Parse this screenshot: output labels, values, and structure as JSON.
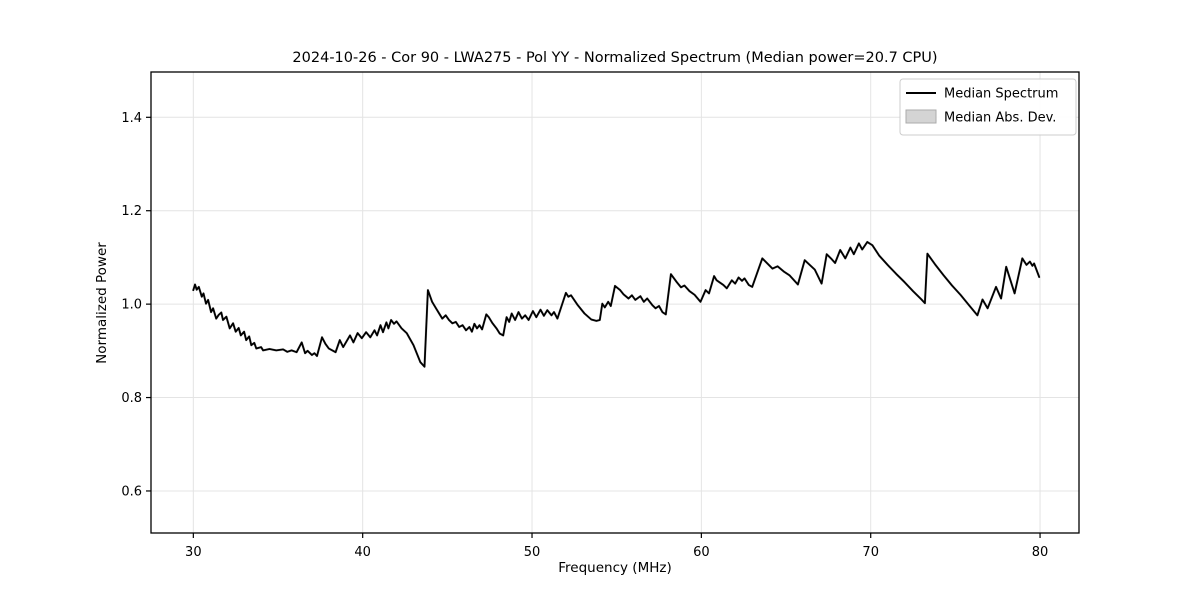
{
  "chart_data": {
    "type": "line",
    "title": "2024-10-26 - Cor 90 - LWA275 - Pol YY - Normalized Spectrum (Median power=20.7 CPU)",
    "xlabel": "Frequency (MHz)",
    "ylabel": "Normalized Power",
    "xlim": [
      27.5,
      82.3
    ],
    "ylim": [
      0.51,
      1.497
    ],
    "xticks": [
      {
        "v": 30,
        "label": "30"
      },
      {
        "v": 40,
        "label": "40"
      },
      {
        "v": 50,
        "label": "50"
      },
      {
        "v": 60,
        "label": "60"
      },
      {
        "v": 70,
        "label": "70"
      },
      {
        "v": 80,
        "label": "80"
      }
    ],
    "yticks": [
      {
        "v": 0.6,
        "label": "0.6"
      },
      {
        "v": 0.8,
        "label": "0.8"
      },
      {
        "v": 1.0,
        "label": "1.0"
      },
      {
        "v": 1.2,
        "label": "1.2"
      },
      {
        "v": 1.4,
        "label": "1.4"
      }
    ],
    "grid": true,
    "grid_color": "#e4e4e4",
    "legend": {
      "position": "upper right",
      "entries": [
        {
          "label": "Median Spectrum",
          "type": "line",
          "color": "#000000"
        },
        {
          "label": "Median Abs. Dev.",
          "type": "patch",
          "color": "#d4d4d4",
          "edge_color": "#ababab"
        }
      ]
    },
    "series": [
      {
        "name": "Median Spectrum",
        "color": "#000000",
        "mad_band_color": "#c9c9c9",
        "mad_band_halfwidth": 0.002,
        "points": [
          [
            30.0,
            1.03
          ],
          [
            30.1,
            1.042
          ],
          [
            30.2,
            1.031
          ],
          [
            30.32,
            1.037
          ],
          [
            30.5,
            1.016
          ],
          [
            30.6,
            1.023
          ],
          [
            30.75,
            1.001
          ],
          [
            30.87,
            1.009
          ],
          [
            31.05,
            0.983
          ],
          [
            31.17,
            0.991
          ],
          [
            31.35,
            0.969
          ],
          [
            31.5,
            0.977
          ],
          [
            31.65,
            0.982
          ],
          [
            31.75,
            0.966
          ],
          [
            31.95,
            0.973
          ],
          [
            32.15,
            0.948
          ],
          [
            32.35,
            0.959
          ],
          [
            32.5,
            0.941
          ],
          [
            32.68,
            0.949
          ],
          [
            32.8,
            0.933
          ],
          [
            33.0,
            0.941
          ],
          [
            33.12,
            0.923
          ],
          [
            33.3,
            0.931
          ],
          [
            33.42,
            0.912
          ],
          [
            33.6,
            0.917
          ],
          [
            33.72,
            0.905
          ],
          [
            34.0,
            0.908
          ],
          [
            34.12,
            0.901
          ],
          [
            34.5,
            0.904
          ],
          [
            34.9,
            0.901
          ],
          [
            35.3,
            0.903
          ],
          [
            35.55,
            0.898
          ],
          [
            35.8,
            0.901
          ],
          [
            36.1,
            0.897
          ],
          [
            36.4,
            0.918
          ],
          [
            36.6,
            0.895
          ],
          [
            36.75,
            0.9
          ],
          [
            37.0,
            0.891
          ],
          [
            37.15,
            0.895
          ],
          [
            37.3,
            0.889
          ],
          [
            37.6,
            0.929
          ],
          [
            37.8,
            0.915
          ],
          [
            38.0,
            0.905
          ],
          [
            38.4,
            0.897
          ],
          [
            38.65,
            0.923
          ],
          [
            38.85,
            0.908
          ],
          [
            39.25,
            0.933
          ],
          [
            39.45,
            0.918
          ],
          [
            39.7,
            0.938
          ],
          [
            39.95,
            0.927
          ],
          [
            40.2,
            0.94
          ],
          [
            40.45,
            0.929
          ],
          [
            40.7,
            0.944
          ],
          [
            40.85,
            0.933
          ],
          [
            41.05,
            0.955
          ],
          [
            41.2,
            0.94
          ],
          [
            41.4,
            0.961
          ],
          [
            41.52,
            0.948
          ],
          [
            41.68,
            0.966
          ],
          [
            41.85,
            0.958
          ],
          [
            42.0,
            0.963
          ],
          [
            42.3,
            0.948
          ],
          [
            42.6,
            0.938
          ],
          [
            43.0,
            0.912
          ],
          [
            43.4,
            0.876
          ],
          [
            43.65,
            0.866
          ],
          [
            43.85,
            1.03
          ],
          [
            44.1,
            1.005
          ],
          [
            44.35,
            0.99
          ],
          [
            44.55,
            0.978
          ],
          [
            44.7,
            0.969
          ],
          [
            44.9,
            0.976
          ],
          [
            45.1,
            0.966
          ],
          [
            45.3,
            0.959
          ],
          [
            45.5,
            0.962
          ],
          [
            45.7,
            0.951
          ],
          [
            45.9,
            0.955
          ],
          [
            46.1,
            0.944
          ],
          [
            46.3,
            0.951
          ],
          [
            46.45,
            0.941
          ],
          [
            46.6,
            0.958
          ],
          [
            46.75,
            0.948
          ],
          [
            46.9,
            0.955
          ],
          [
            47.05,
            0.946
          ],
          [
            47.3,
            0.978
          ],
          [
            47.45,
            0.972
          ],
          [
            47.65,
            0.96
          ],
          [
            47.9,
            0.948
          ],
          [
            48.1,
            0.937
          ],
          [
            48.3,
            0.933
          ],
          [
            48.5,
            0.972
          ],
          [
            48.65,
            0.962
          ],
          [
            48.8,
            0.98
          ],
          [
            49.0,
            0.966
          ],
          [
            49.2,
            0.983
          ],
          [
            49.4,
            0.969
          ],
          [
            49.6,
            0.976
          ],
          [
            49.8,
            0.966
          ],
          [
            50.05,
            0.985
          ],
          [
            50.25,
            0.972
          ],
          [
            50.5,
            0.988
          ],
          [
            50.7,
            0.975
          ],
          [
            50.9,
            0.987
          ],
          [
            51.15,
            0.976
          ],
          [
            51.3,
            0.983
          ],
          [
            51.5,
            0.969
          ],
          [
            52.0,
            1.024
          ],
          [
            52.15,
            1.016
          ],
          [
            52.3,
            1.019
          ],
          [
            52.7,
            0.998
          ],
          [
            53.1,
            0.98
          ],
          [
            53.5,
            0.967
          ],
          [
            53.8,
            0.964
          ],
          [
            54.0,
            0.966
          ],
          [
            54.15,
            1.001
          ],
          [
            54.3,
            0.993
          ],
          [
            54.5,
            1.005
          ],
          [
            54.65,
            0.996
          ],
          [
            54.9,
            1.039
          ],
          [
            55.2,
            1.03
          ],
          [
            55.4,
            1.021
          ],
          [
            55.7,
            1.012
          ],
          [
            55.9,
            1.019
          ],
          [
            56.1,
            1.009
          ],
          [
            56.4,
            1.017
          ],
          [
            56.6,
            1.005
          ],
          [
            56.8,
            1.012
          ],
          [
            57.1,
            0.998
          ],
          [
            57.3,
            0.991
          ],
          [
            57.5,
            0.996
          ],
          [
            57.7,
            0.983
          ],
          [
            57.9,
            0.978
          ],
          [
            58.2,
            1.064
          ],
          [
            58.55,
            1.047
          ],
          [
            58.8,
            1.036
          ],
          [
            59.0,
            1.04
          ],
          [
            59.3,
            1.028
          ],
          [
            59.6,
            1.02
          ],
          [
            59.95,
            1.005
          ],
          [
            60.25,
            1.03
          ],
          [
            60.45,
            1.023
          ],
          [
            60.75,
            1.06
          ],
          [
            60.9,
            1.051
          ],
          [
            61.3,
            1.041
          ],
          [
            61.5,
            1.034
          ],
          [
            61.8,
            1.051
          ],
          [
            62.0,
            1.044
          ],
          [
            62.2,
            1.057
          ],
          [
            62.4,
            1.05
          ],
          [
            62.55,
            1.055
          ],
          [
            62.8,
            1.041
          ],
          [
            63.0,
            1.037
          ],
          [
            63.6,
            1.098
          ],
          [
            63.9,
            1.087
          ],
          [
            64.2,
            1.076
          ],
          [
            64.5,
            1.081
          ],
          [
            64.9,
            1.069
          ],
          [
            65.2,
            1.062
          ],
          [
            65.7,
            1.042
          ],
          [
            66.1,
            1.094
          ],
          [
            66.4,
            1.084
          ],
          [
            66.7,
            1.074
          ],
          [
            67.1,
            1.044
          ],
          [
            67.4,
            1.107
          ],
          [
            67.7,
            1.096
          ],
          [
            67.9,
            1.088
          ],
          [
            68.2,
            1.116
          ],
          [
            68.5,
            1.098
          ],
          [
            68.8,
            1.121
          ],
          [
            69.0,
            1.107
          ],
          [
            69.3,
            1.13
          ],
          [
            69.5,
            1.117
          ],
          [
            69.8,
            1.133
          ],
          [
            70.1,
            1.126
          ],
          [
            70.5,
            1.104
          ],
          [
            71.0,
            1.084
          ],
          [
            71.5,
            1.065
          ],
          [
            72.0,
            1.047
          ],
          [
            72.5,
            1.028
          ],
          [
            73.0,
            1.01
          ],
          [
            73.2,
            1.002
          ],
          [
            73.35,
            1.108
          ],
          [
            73.8,
            1.085
          ],
          [
            74.3,
            1.062
          ],
          [
            74.8,
            1.04
          ],
          [
            75.3,
            1.02
          ],
          [
            75.8,
            0.998
          ],
          [
            76.3,
            0.976
          ],
          [
            76.6,
            1.01
          ],
          [
            76.9,
            0.991
          ],
          [
            77.4,
            1.037
          ],
          [
            77.7,
            1.012
          ],
          [
            78.0,
            1.08
          ],
          [
            78.5,
            1.023
          ],
          [
            78.95,
            1.098
          ],
          [
            79.2,
            1.084
          ],
          [
            79.4,
            1.091
          ],
          [
            79.55,
            1.082
          ],
          [
            79.65,
            1.087
          ],
          [
            79.95,
            1.058
          ]
        ]
      }
    ]
  }
}
